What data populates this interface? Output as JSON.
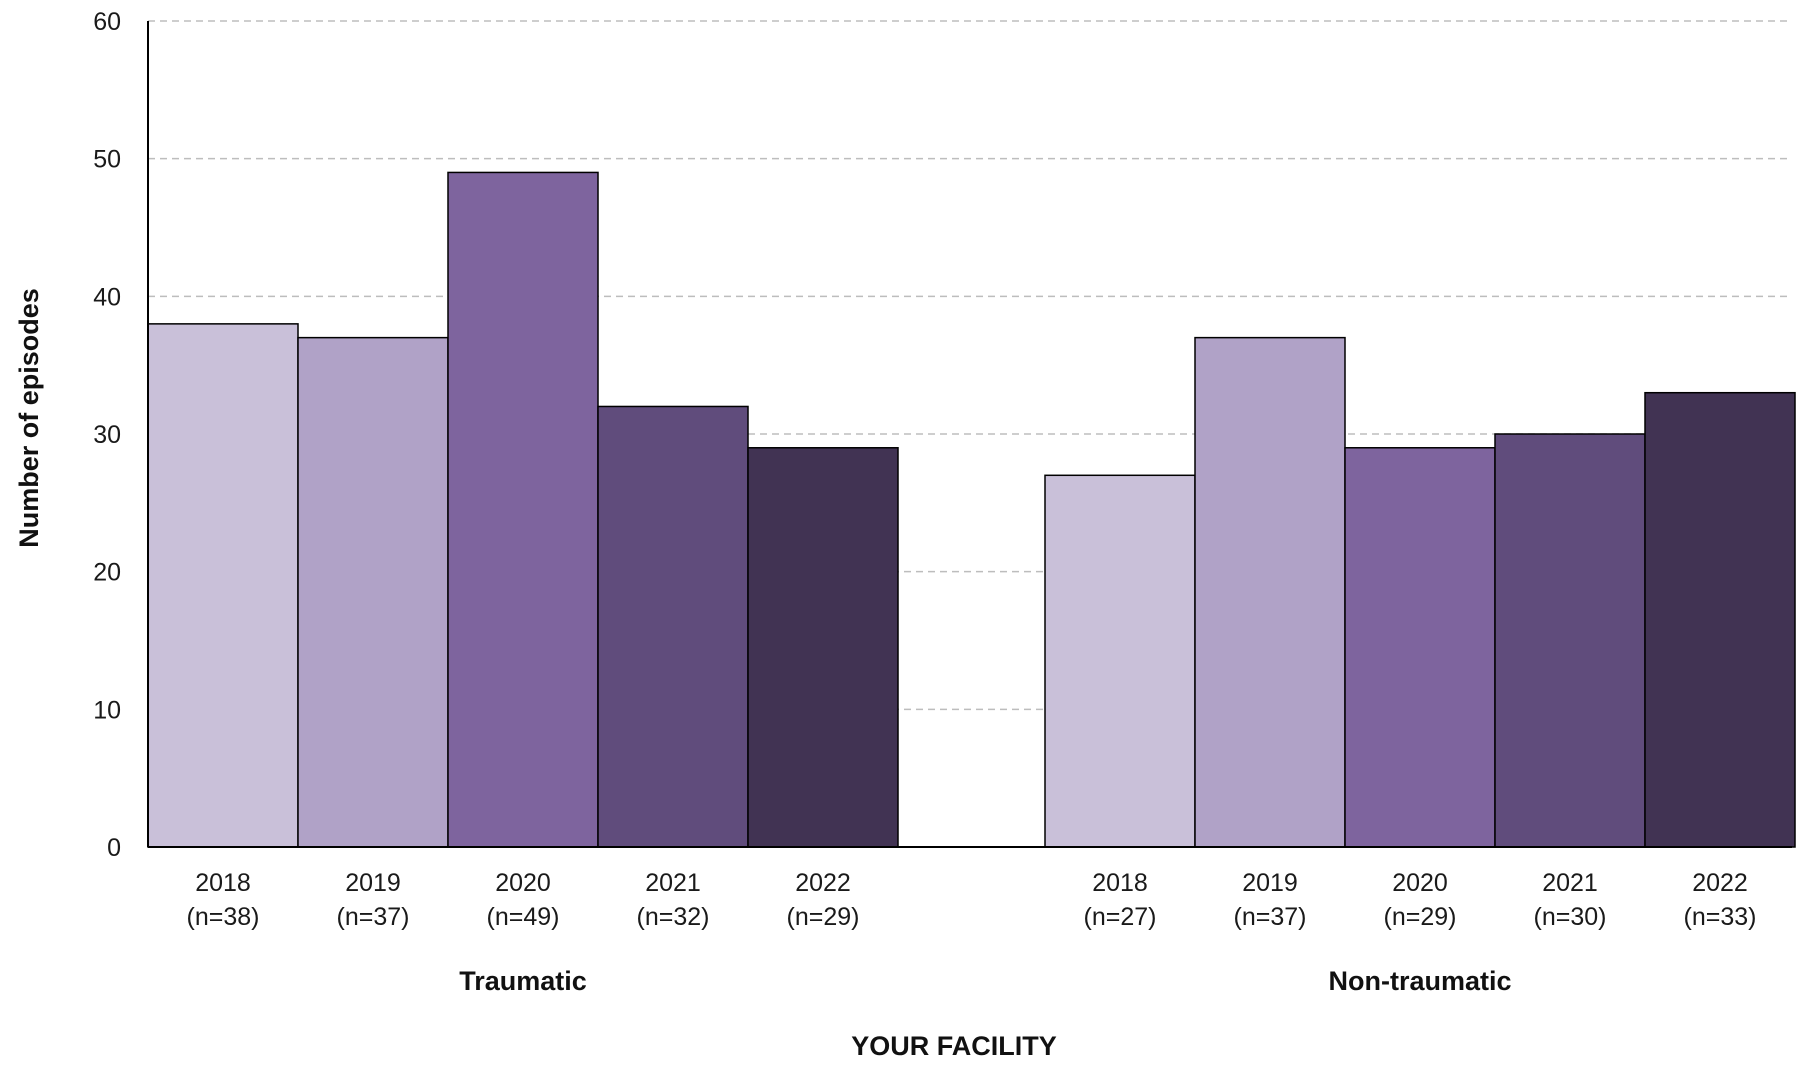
{
  "chart_data": {
    "type": "bar",
    "ylabel": "Number of episodes",
    "xlabel": "YOUR FACILITY",
    "ylim": [
      0,
      60
    ],
    "yticks": [
      0,
      10,
      20,
      30,
      40,
      50,
      60
    ],
    "grid": true,
    "groups": [
      {
        "name": "Traumatic",
        "bars": [
          {
            "year": "2018",
            "n_label": "(n=38)",
            "value": 38,
            "color": "#c9c0d9"
          },
          {
            "year": "2019",
            "n_label": "(n=37)",
            "value": 37,
            "color": "#b0a2c7"
          },
          {
            "year": "2020",
            "n_label": "(n=49)",
            "value": 49,
            "color": "#7e649e"
          },
          {
            "year": "2021",
            "n_label": "(n=32)",
            "value": 32,
            "color": "#604c7c"
          },
          {
            "year": "2022",
            "n_label": "(n=29)",
            "value": 29,
            "color": "#413353"
          }
        ]
      },
      {
        "name": "Non-traumatic",
        "bars": [
          {
            "year": "2018",
            "n_label": "(n=27)",
            "value": 27,
            "color": "#c9c0d9"
          },
          {
            "year": "2019",
            "n_label": "(n=37)",
            "value": 37,
            "color": "#b0a2c7"
          },
          {
            "year": "2020",
            "n_label": "(n=29)",
            "value": 29,
            "color": "#7e649e"
          },
          {
            "year": "2021",
            "n_label": "(n=30)",
            "value": 30,
            "color": "#604c7c"
          },
          {
            "year": "2022",
            "n_label": "(n=33)",
            "value": 33,
            "color": "#413353"
          }
        ]
      }
    ]
  }
}
